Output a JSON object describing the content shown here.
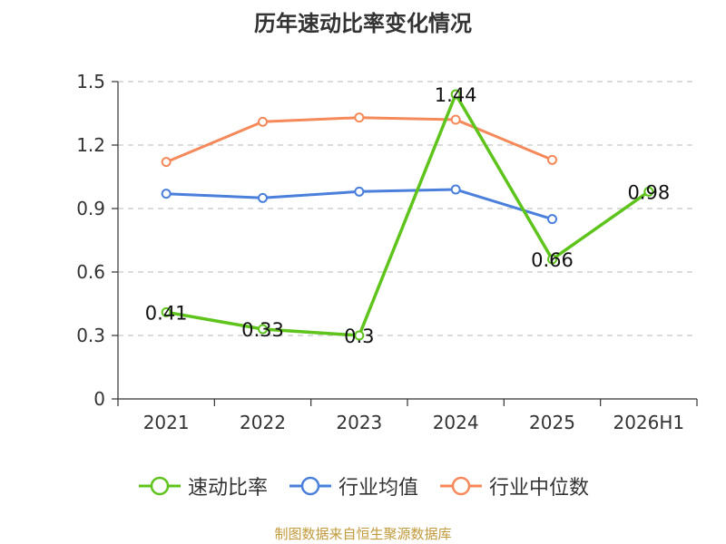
{
  "title": "历年速动比率变化情况",
  "source": "制图数据来自恒生聚源数据库",
  "chart_data": {
    "type": "line",
    "categories": [
      "2021",
      "2022",
      "2023",
      "2024",
      "2025",
      "2026H1"
    ],
    "ylim": [
      0,
      1.5
    ],
    "yticks": [
      "0",
      "0.3",
      "0.6",
      "0.9",
      "1.2",
      "1.5"
    ],
    "grid": true,
    "legend_position": "bottom",
    "series": [
      {
        "name": "速动比率",
        "color": "#5ec41c",
        "show_labels": true,
        "values": [
          0.41,
          0.33,
          0.3,
          1.44,
          0.66,
          0.98
        ],
        "labels": [
          "0.41",
          "0.33",
          "0.3",
          "1.44",
          "0.66",
          "0.98"
        ]
      },
      {
        "name": "行业均值",
        "color": "#4a7fdc",
        "show_labels": false,
        "values": [
          0.97,
          0.95,
          0.98,
          0.99,
          0.85,
          null
        ]
      },
      {
        "name": "行业中位数",
        "color": "#f5895a",
        "show_labels": false,
        "values": [
          1.12,
          1.31,
          1.33,
          1.32,
          1.13,
          null
        ]
      }
    ]
  }
}
